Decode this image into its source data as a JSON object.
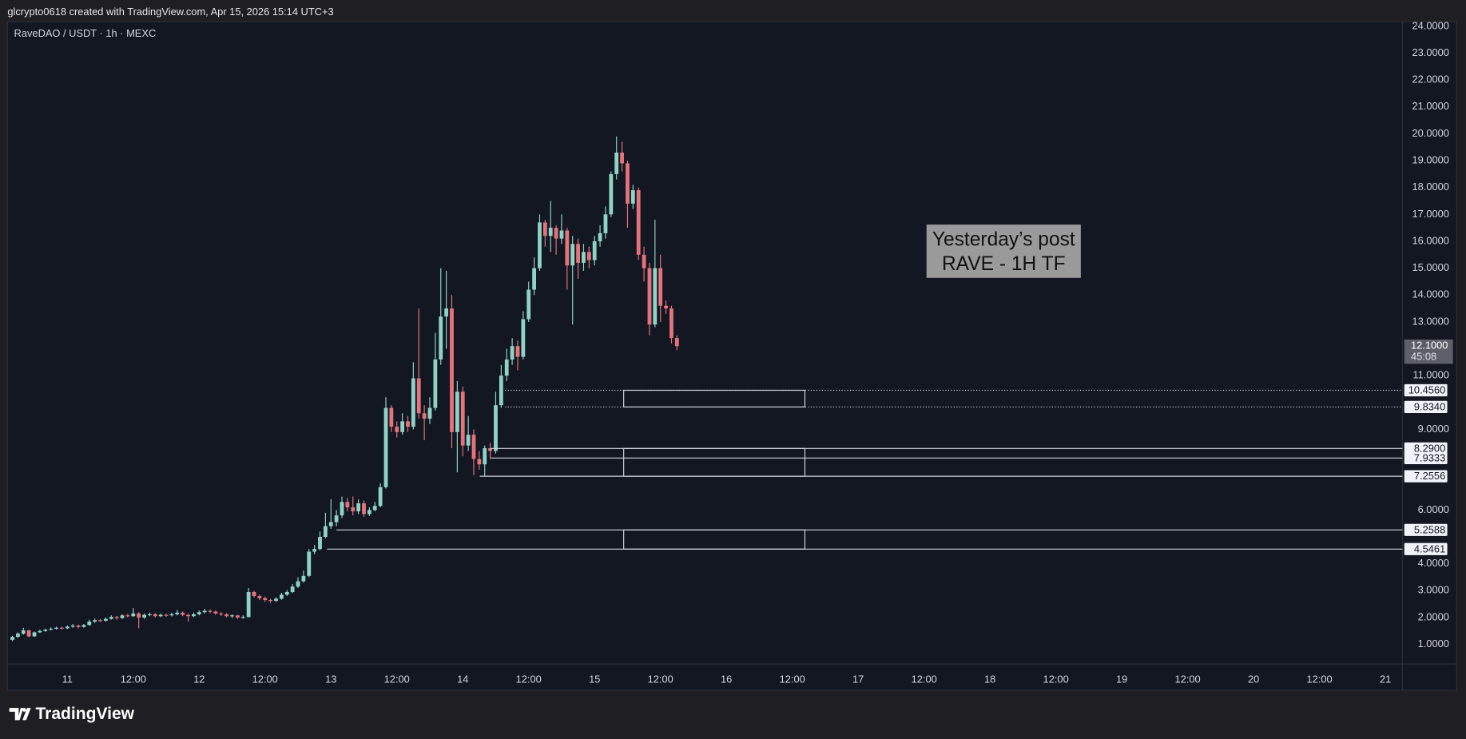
{
  "header": "glcrypto0618 created with TradingView.com, Apr 15, 2026 15:14 UTC+3",
  "footer": "TradingView",
  "chart_data": {
    "type": "candlestick",
    "title": "RaveDAO / USDT · 1h · MEXC",
    "annotation": [
      "Yesterday’s post",
      "RAVE - 1H TF"
    ],
    "up_color": "#8fd3c6",
    "down_color": "#e5737d",
    "grid": false,
    "xlim": [
      -10.9,
      243.1
    ],
    "ylim": [
      0.27,
      24.17
    ],
    "xticks": [
      {
        "value": 0,
        "label": "11"
      },
      {
        "value": 12,
        "label": "12:00"
      },
      {
        "value": 24,
        "label": "12"
      },
      {
        "value": 36,
        "label": "12:00"
      },
      {
        "value": 48,
        "label": "13"
      },
      {
        "value": 60,
        "label": "12:00"
      },
      {
        "value": 72,
        "label": "14"
      },
      {
        "value": 84,
        "label": "12:00"
      },
      {
        "value": 96,
        "label": "15"
      },
      {
        "value": 108,
        "label": "12:00"
      },
      {
        "value": 120,
        "label": "16"
      },
      {
        "value": 132,
        "label": "12:00"
      },
      {
        "value": 144,
        "label": "17"
      },
      {
        "value": 156,
        "label": "12:00"
      },
      {
        "value": 168,
        "label": "18"
      },
      {
        "value": 180,
        "label": "12:00"
      },
      {
        "value": 192,
        "label": "19"
      },
      {
        "value": 204,
        "label": "12:00"
      },
      {
        "value": 216,
        "label": "20"
      },
      {
        "value": 228,
        "label": "12:00"
      },
      {
        "value": 240,
        "label": "21"
      }
    ],
    "yticks": [
      {
        "value": 24,
        "label": "24.0000"
      },
      {
        "value": 23,
        "label": "23.0000"
      },
      {
        "value": 22,
        "label": "22.0000"
      },
      {
        "value": 21,
        "label": "21.0000"
      },
      {
        "value": 20,
        "label": "20.0000"
      },
      {
        "value": 19,
        "label": "19.0000"
      },
      {
        "value": 18,
        "label": "18.0000"
      },
      {
        "value": 17,
        "label": "17.0000"
      },
      {
        "value": 16,
        "label": "16.0000"
      },
      {
        "value": 15,
        "label": "15.0000"
      },
      {
        "value": 14,
        "label": "14.0000"
      },
      {
        "value": 13,
        "label": "13.0000"
      },
      {
        "value": 11,
        "label": "11.0000"
      },
      {
        "value": 9,
        "label": "9.0000"
      },
      {
        "value": 6,
        "label": "6.0000"
      },
      {
        "value": 4,
        "label": "4.0000"
      },
      {
        "value": 3,
        "label": "3.0000"
      },
      {
        "value": 2,
        "label": "2.0000"
      },
      {
        "value": 1,
        "label": "1.0000"
      }
    ],
    "last_price": {
      "value": 12.1,
      "label": "12.1000",
      "countdown": "45:08"
    },
    "zones": [
      {
        "style": "dotted",
        "box": [
          101.3,
          134.3
        ],
        "lines": [
          {
            "value": 10.456,
            "label": "10.4560",
            "start": 79.7
          },
          {
            "value": 9.834,
            "label": "9.8340",
            "start": 79.7
          }
        ]
      },
      {
        "style": "solid",
        "box": [
          101.3,
          134.3
        ],
        "lines": [
          {
            "value": 8.29,
            "label": "8.2900",
            "start": 77.1
          },
          {
            "value": 7.9333,
            "label": "7.9333",
            "start": 77.1
          },
          {
            "value": 7.2556,
            "label": "7.2556",
            "start": 75.1
          }
        ]
      },
      {
        "style": "solid",
        "box": [
          101.3,
          134.3
        ],
        "lines": [
          {
            "value": 5.2588,
            "label": "5.2588",
            "start": 49
          },
          {
            "value": 4.5461,
            "label": "4.5461",
            "start": 47.3
          }
        ]
      }
    ],
    "x": [
      -10,
      -9,
      -8,
      -7,
      -6,
      -5,
      -4,
      -3,
      -2,
      -1,
      0,
      1,
      2,
      3,
      4,
      5,
      6,
      7,
      8,
      9,
      10,
      11,
      12,
      13,
      14,
      15,
      16,
      17,
      18,
      19,
      20,
      21,
      22,
      23,
      24,
      25,
      26,
      27,
      28,
      29,
      30,
      31,
      32,
      33,
      34,
      35,
      36,
      37,
      38,
      39,
      40,
      41,
      42,
      43,
      44,
      45,
      46,
      47,
      48,
      49,
      50,
      51,
      52,
      53,
      54,
      55,
      56,
      57,
      58,
      59,
      60,
      61,
      62,
      63,
      64,
      65,
      66,
      67,
      68,
      69,
      70,
      71,
      72,
      73,
      74,
      75,
      76,
      77,
      78,
      79,
      80,
      81,
      82,
      83,
      84,
      85,
      86,
      87,
      88,
      89,
      90,
      91,
      92,
      93,
      94,
      95,
      96,
      97,
      98,
      99,
      100,
      101,
      102,
      103,
      104,
      105,
      106,
      107,
      108,
      109,
      110,
      111
    ],
    "candles": [
      [
        1.17,
        1.32,
        1.12,
        1.28
      ],
      [
        1.28,
        1.45,
        1.25,
        1.4
      ],
      [
        1.4,
        1.62,
        1.36,
        1.52
      ],
      [
        1.52,
        1.55,
        1.26,
        1.3
      ],
      [
        1.3,
        1.48,
        1.28,
        1.45
      ],
      [
        1.45,
        1.55,
        1.42,
        1.5
      ],
      [
        1.5,
        1.58,
        1.47,
        1.55
      ],
      [
        1.55,
        1.63,
        1.52,
        1.58
      ],
      [
        1.58,
        1.66,
        1.55,
        1.62
      ],
      [
        1.62,
        1.66,
        1.56,
        1.6
      ],
      [
        1.6,
        1.7,
        1.57,
        1.66
      ],
      [
        1.66,
        1.76,
        1.62,
        1.7
      ],
      [
        1.7,
        1.74,
        1.6,
        1.65
      ],
      [
        1.65,
        1.76,
        1.62,
        1.72
      ],
      [
        1.72,
        1.92,
        1.7,
        1.85
      ],
      [
        1.85,
        1.96,
        1.8,
        1.9
      ],
      [
        1.9,
        1.95,
        1.83,
        1.88
      ],
      [
        1.88,
        2.0,
        1.85,
        1.95
      ],
      [
        1.95,
        2.08,
        1.92,
        2.02
      ],
      [
        2.02,
        2.06,
        1.92,
        1.98
      ],
      [
        1.98,
        2.12,
        1.95,
        2.08
      ],
      [
        2.08,
        2.14,
        2.0,
        2.05
      ],
      [
        2.05,
        2.35,
        2.02,
        2.15
      ],
      [
        2.15,
        2.2,
        1.6,
        2.0
      ],
      [
        2.0,
        2.15,
        1.95,
        2.1
      ],
      [
        2.1,
        2.18,
        2.05,
        2.12
      ],
      [
        2.12,
        2.16,
        2.0,
        2.05
      ],
      [
        2.05,
        2.15,
        2.01,
        2.1
      ],
      [
        2.1,
        2.14,
        2.03,
        2.08
      ],
      [
        2.08,
        2.18,
        2.04,
        2.12
      ],
      [
        2.12,
        2.28,
        2.08,
        2.18
      ],
      [
        2.18,
        2.22,
        2.05,
        2.1
      ],
      [
        2.1,
        2.14,
        1.85,
        2.05
      ],
      [
        2.05,
        2.18,
        2.02,
        2.12
      ],
      [
        2.12,
        2.26,
        2.08,
        2.2
      ],
      [
        2.2,
        2.32,
        2.15,
        2.25
      ],
      [
        2.25,
        2.3,
        2.16,
        2.22
      ],
      [
        2.22,
        2.26,
        2.1,
        2.15
      ],
      [
        2.15,
        2.2,
        2.06,
        2.12
      ],
      [
        2.12,
        2.16,
        2.0,
        2.05
      ],
      [
        2.05,
        2.12,
        1.98,
        2.08
      ],
      [
        2.08,
        2.1,
        1.95,
        2.0
      ],
      [
        2.0,
        2.08,
        1.96,
        2.02
      ],
      [
        2.02,
        3.1,
        2.0,
        2.95
      ],
      [
        2.95,
        3.0,
        2.75,
        2.8
      ],
      [
        2.8,
        2.85,
        2.65,
        2.72
      ],
      [
        2.72,
        2.78,
        2.58,
        2.65
      ],
      [
        2.65,
        2.7,
        2.55,
        2.62
      ],
      [
        2.62,
        2.75,
        2.58,
        2.7
      ],
      [
        2.7,
        2.92,
        2.66,
        2.85
      ],
      [
        2.85,
        3.02,
        2.8,
        2.95
      ],
      [
        2.95,
        3.25,
        2.9,
        3.15
      ],
      [
        3.15,
        3.5,
        3.1,
        3.35
      ],
      [
        3.35,
        3.75,
        3.3,
        3.55
      ],
      [
        3.55,
        4.55,
        3.5,
        4.45
      ],
      [
        4.45,
        4.7,
        4.35,
        4.55
      ],
      [
        4.55,
        5.2,
        4.5,
        5.0
      ],
      [
        5.0,
        5.9,
        4.95,
        5.4
      ],
      [
        5.4,
        6.4,
        5.3,
        5.55
      ],
      [
        5.55,
        6.0,
        5.4,
        5.8
      ],
      [
        5.8,
        6.5,
        5.7,
        6.3
      ],
      [
        6.3,
        6.45,
        5.95,
        6.1
      ],
      [
        6.1,
        6.5,
        5.8,
        5.95
      ],
      [
        5.95,
        6.4,
        5.85,
        6.25
      ],
      [
        6.25,
        6.35,
        5.75,
        5.85
      ],
      [
        5.85,
        6.1,
        5.78,
        6.0
      ],
      [
        6.0,
        6.3,
        5.95,
        6.15
      ],
      [
        6.15,
        7.0,
        6.1,
        6.85
      ],
      [
        6.85,
        10.2,
        6.8,
        9.8
      ],
      [
        9.8,
        9.9,
        8.9,
        9.1
      ],
      [
        9.1,
        9.3,
        8.7,
        8.9
      ],
      [
        8.9,
        9.6,
        8.8,
        9.3
      ],
      [
        9.3,
        9.5,
        8.9,
        9.1
      ],
      [
        9.1,
        11.5,
        9.0,
        10.9
      ],
      [
        10.9,
        13.5,
        9.4,
        9.6
      ],
      [
        9.6,
        9.9,
        8.6,
        9.4
      ],
      [
        9.4,
        10.2,
        9.2,
        9.8
      ],
      [
        9.8,
        12.6,
        9.7,
        11.6
      ],
      [
        11.6,
        15.0,
        11.4,
        13.2
      ],
      [
        13.2,
        14.9,
        12.0,
        13.5
      ],
      [
        13.5,
        14.0,
        8.3,
        8.9
      ],
      [
        8.9,
        10.8,
        7.4,
        10.4
      ],
      [
        10.4,
        10.6,
        8.0,
        8.4
      ],
      [
        8.4,
        9.5,
        8.2,
        8.8
      ],
      [
        8.8,
        9.0,
        7.3,
        7.9
      ],
      [
        7.9,
        8.2,
        7.5,
        7.7
      ],
      [
        7.7,
        8.4,
        7.26,
        8.3
      ],
      [
        8.3,
        8.5,
        7.9,
        8.2
      ],
      [
        8.2,
        10.4,
        8.1,
        9.9
      ],
      [
        9.9,
        11.4,
        9.8,
        11.0
      ],
      [
        11.0,
        12.0,
        10.8,
        11.6
      ],
      [
        11.6,
        12.4,
        11.4,
        12.1
      ],
      [
        12.1,
        12.3,
        11.2,
        11.7
      ],
      [
        11.7,
        13.4,
        11.6,
        13.1
      ],
      [
        13.1,
        14.5,
        13.0,
        14.2
      ],
      [
        14.2,
        15.4,
        14.0,
        15.0
      ],
      [
        15.0,
        17.0,
        14.9,
        16.7
      ],
      [
        16.7,
        16.8,
        15.8,
        16.2
      ],
      [
        16.2,
        17.5,
        15.6,
        16.5
      ],
      [
        16.5,
        16.6,
        15.5,
        16.1
      ],
      [
        16.1,
        17.0,
        15.9,
        16.4
      ],
      [
        16.4,
        16.5,
        14.2,
        15.1
      ],
      [
        15.1,
        16.2,
        12.9,
        15.9
      ],
      [
        15.9,
        16.1,
        14.6,
        15.2
      ],
      [
        15.2,
        15.9,
        14.9,
        15.6
      ],
      [
        15.6,
        15.8,
        15.0,
        15.3
      ],
      [
        15.3,
        16.2,
        15.1,
        16.0
      ],
      [
        16.0,
        16.6,
        15.8,
        16.3
      ],
      [
        16.3,
        17.3,
        16.1,
        17.0
      ],
      [
        17.0,
        18.6,
        16.9,
        18.5
      ],
      [
        18.5,
        19.9,
        18.3,
        19.3
      ],
      [
        19.3,
        19.7,
        18.6,
        18.9
      ],
      [
        18.9,
        19.0,
        16.5,
        17.4
      ],
      [
        17.4,
        18.1,
        17.2,
        17.9
      ],
      [
        17.9,
        18.0,
        15.3,
        15.5
      ],
      [
        15.5,
        15.8,
        14.5,
        15.0
      ],
      [
        15.0,
        15.2,
        12.5,
        12.9
      ],
      [
        12.9,
        16.8,
        12.8,
        15.0
      ],
      [
        15.0,
        15.5,
        13.0,
        13.6
      ],
      [
        13.6,
        13.8,
        13.3,
        13.5
      ],
      [
        13.5,
        13.6,
        12.2,
        12.4
      ],
      [
        12.4,
        12.5,
        11.95,
        12.1
      ]
    ]
  }
}
